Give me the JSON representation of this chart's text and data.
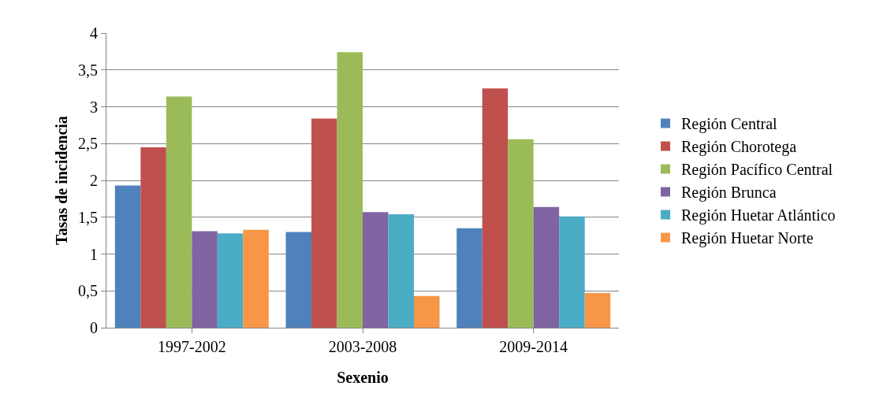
{
  "chart_data": {
    "type": "bar",
    "xlabel": "Sexenio",
    "ylabel": "Tasas de incidencia",
    "categories": [
      "1997-2002",
      "2003-2008",
      "2009-2014"
    ],
    "series": [
      {
        "name": "Región Central",
        "color": "#4f81bd",
        "values": [
          1.93,
          1.3,
          1.35
        ]
      },
      {
        "name": "Región Chorotega",
        "color": "#c0504d",
        "values": [
          2.45,
          2.84,
          3.25
        ]
      },
      {
        "name": "Región Pacífico Central",
        "color": "#9bbb59",
        "values": [
          3.14,
          3.74,
          2.56
        ]
      },
      {
        "name": "Región Brunca",
        "color": "#8064a2",
        "values": [
          1.31,
          1.57,
          1.64
        ]
      },
      {
        "name": "Región Huetar Atlántico",
        "color": "#4bacc6",
        "values": [
          1.28,
          1.54,
          1.51
        ]
      },
      {
        "name": "Región Huetar Norte",
        "color": "#f79646",
        "values": [
          1.33,
          0.43,
          0.47
        ]
      }
    ],
    "ylim": [
      0,
      4
    ],
    "yticks": [
      0,
      {
        "value": 0.5,
        "label": "0,5"
      },
      1,
      {
        "value": 1.5,
        "label": "1,5"
      },
      2,
      {
        "value": 2.5,
        "label": "2,5"
      },
      3,
      {
        "value": 3.5,
        "label": "3,5"
      },
      4
    ],
    "grid": "y",
    "legend": "right"
  }
}
